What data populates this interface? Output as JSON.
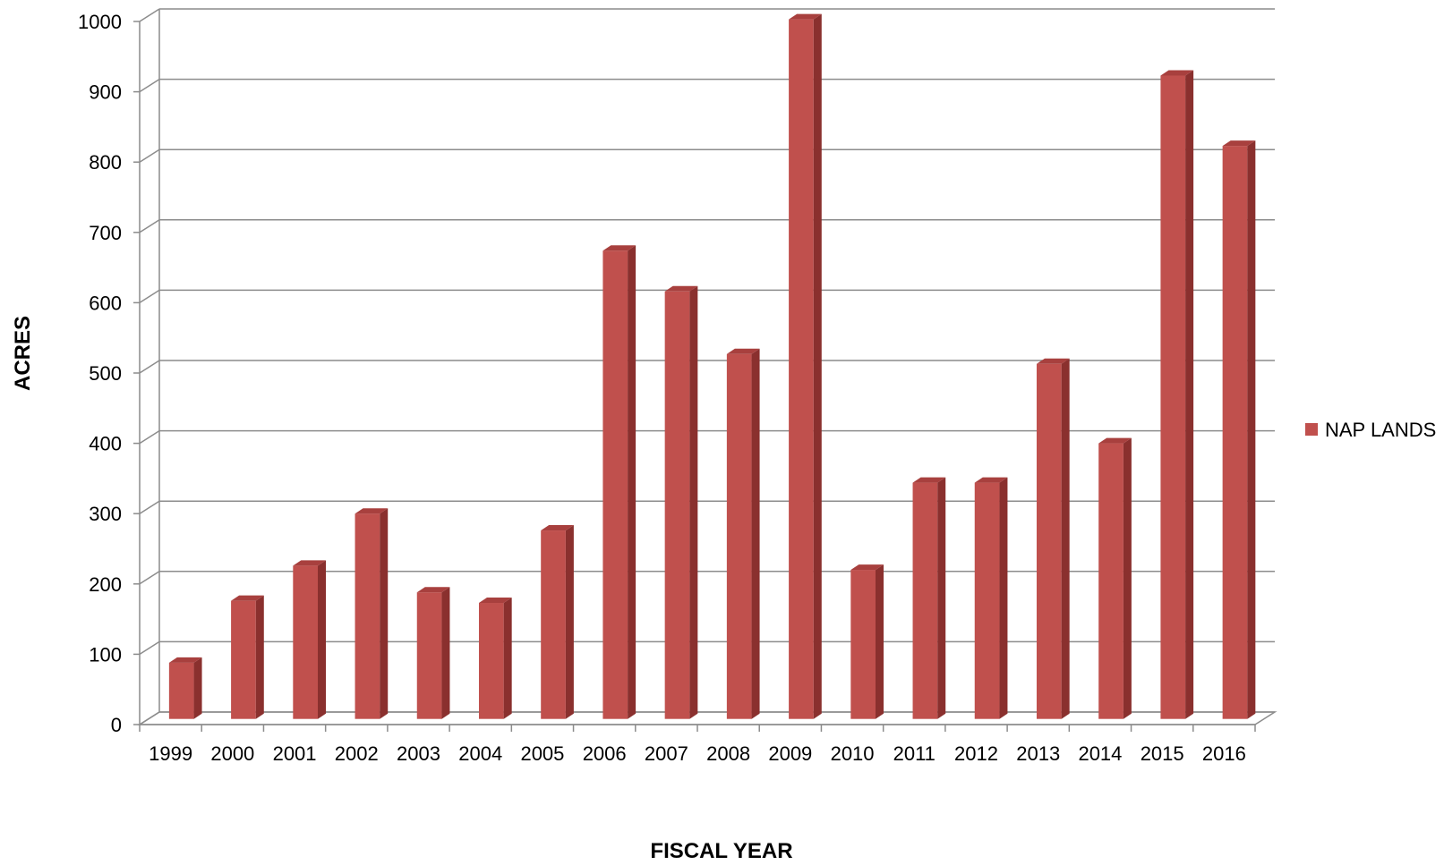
{
  "chart_data": {
    "type": "bar",
    "style": "3d-column",
    "title": "",
    "xlabel": "FISCAL YEAR",
    "ylabel": "ACRES",
    "ylim": [
      0,
      1000
    ],
    "yticks": [
      0,
      100,
      200,
      300,
      400,
      500,
      600,
      700,
      800,
      900,
      1000
    ],
    "grid": true,
    "legend_position": "right",
    "categories": [
      "1999",
      "2000",
      "2001",
      "2002",
      "2003",
      "2004",
      "2005",
      "2006",
      "2007",
      "2008",
      "2009",
      "2010",
      "2011",
      "2012",
      "2013",
      "2014",
      "2015",
      "2016"
    ],
    "series": [
      {
        "name": "NAP LANDS",
        "color": "#C0504D",
        "values": [
          80,
          168,
          218,
          292,
          180,
          165,
          268,
          666,
          608,
          519,
          995,
          212,
          336,
          336,
          505,
          392,
          915,
          815
        ]
      }
    ]
  }
}
